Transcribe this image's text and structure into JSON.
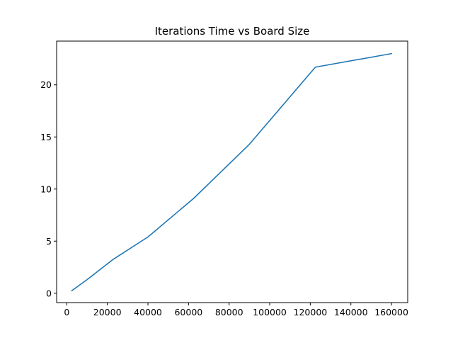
{
  "chart_data": {
    "type": "line",
    "title": "Iterations Time vs Board Size",
    "xlabel": "",
    "ylabel": "",
    "xlim": [
      -5000,
      168000
    ],
    "ylim": [
      -0.9,
      24.2
    ],
    "xticks": [
      0,
      20000,
      40000,
      60000,
      80000,
      100000,
      120000,
      140000,
      160000
    ],
    "yticks": [
      0,
      5,
      10,
      15,
      20
    ],
    "grid": false,
    "legend": "none",
    "colors": {
      "line": "#1f77b4",
      "axes": "#000000",
      "background": "#ffffff"
    },
    "series": [
      {
        "x": [
          2500,
          10000,
          22500,
          40000,
          62500,
          90000,
          122500,
          160000
        ],
        "y": [
          0.25,
          1.3,
          3.2,
          5.4,
          9.1,
          14.3,
          21.7,
          23.0
        ]
      }
    ]
  }
}
